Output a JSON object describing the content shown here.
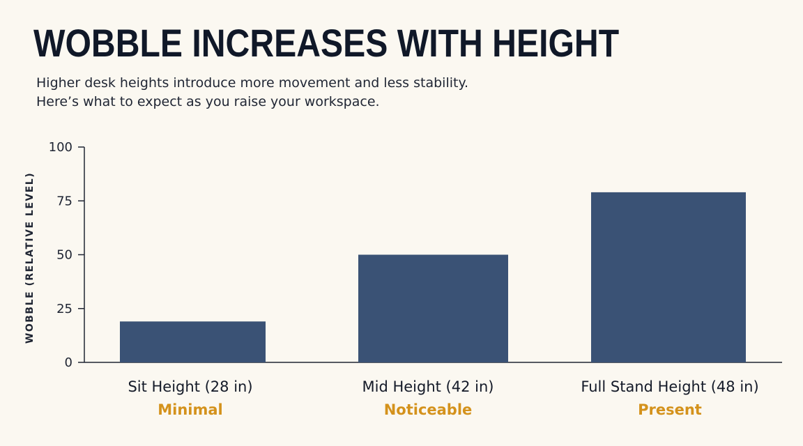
{
  "header": {
    "title": "WOBBLE INCREASES WITH HEIGHT",
    "subtitle_line1": "Higher desk heights introduce more movement and less stability.",
    "subtitle_line2": "Here’s what to expect as you raise your workspace."
  },
  "chart_data": {
    "type": "bar",
    "title": "WOBBLE INCREASES WITH HEIGHT",
    "ylabel": "WOBBLE (RELATIVE LEVEL)",
    "xlabel": "",
    "ylim": [
      0,
      100
    ],
    "yticks": [
      0,
      25,
      50,
      75,
      100
    ],
    "categories": [
      "Sit Height (28 in)",
      "Mid Height (42 in)",
      "Full Stand Height (48 in)"
    ],
    "category_sublabels": [
      "Minimal",
      "Noticeable",
      "Present"
    ],
    "values": [
      19,
      50,
      79
    ],
    "grid": false,
    "colors": {
      "bar": "#3a5275",
      "sublabel": "#d4921c",
      "axis": "#1f2533"
    }
  }
}
